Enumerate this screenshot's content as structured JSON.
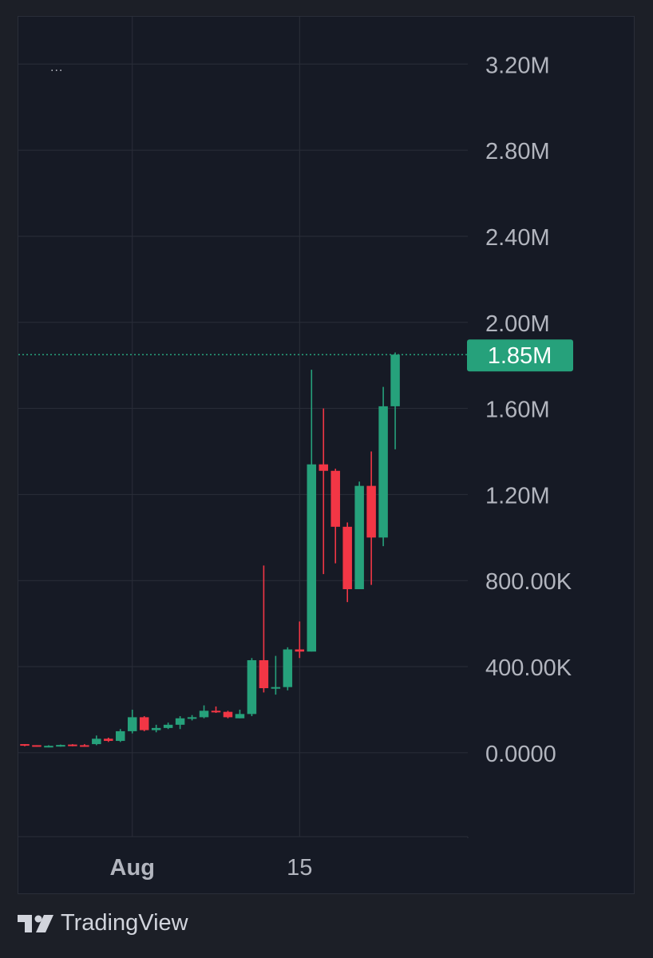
{
  "menu_label": "...",
  "brand": {
    "name": "TradingView"
  },
  "colors": {
    "up": "#26a17b",
    "down": "#f23645",
    "grid": "#2a2e39",
    "text": "#b2b5be",
    "background": "#161a25",
    "price_line": "#26a17b"
  },
  "chart_data": {
    "type": "candlestick",
    "y_ticks": [
      {
        "value": 3200000,
        "label": "3.20M"
      },
      {
        "value": 2800000,
        "label": "2.80M"
      },
      {
        "value": 2400000,
        "label": "2.40M"
      },
      {
        "value": 2000000,
        "label": "2.00M"
      },
      {
        "value": 1600000,
        "label": "1.60M"
      },
      {
        "value": 1200000,
        "label": "1.20M"
      },
      {
        "value": 800000,
        "label": "800.00K"
      },
      {
        "value": 400000,
        "label": "400.00K"
      },
      {
        "value": 0,
        "label": "0.0000"
      }
    ],
    "x_ticks": [
      {
        "index": 9,
        "label": "Aug"
      },
      {
        "index": 23,
        "label": "15"
      }
    ],
    "ylim": [
      -390000,
      3420000
    ],
    "current_price": {
      "value": 1850000,
      "label": "1.85M"
    },
    "candles": [
      {
        "o": 40000,
        "h": 40000,
        "l": 30000,
        "c": 35000
      },
      {
        "o": 35000,
        "h": 35000,
        "l": 28000,
        "c": 30000
      },
      {
        "o": 30000,
        "h": 35000,
        "l": 25000,
        "c": 32000
      },
      {
        "o": 32000,
        "h": 38000,
        "l": 28000,
        "c": 36000
      },
      {
        "o": 38000,
        "h": 40000,
        "l": 30000,
        "c": 35000
      },
      {
        "o": 35000,
        "h": 40000,
        "l": 28000,
        "c": 33000
      },
      {
        "o": 40000,
        "h": 80000,
        "l": 35000,
        "c": 65000
      },
      {
        "o": 65000,
        "h": 70000,
        "l": 50000,
        "c": 55000
      },
      {
        "o": 55000,
        "h": 110000,
        "l": 50000,
        "c": 100000
      },
      {
        "o": 100000,
        "h": 200000,
        "l": 90000,
        "c": 165000
      },
      {
        "o": 165000,
        "h": 170000,
        "l": 100000,
        "c": 105000
      },
      {
        "o": 105000,
        "h": 130000,
        "l": 95000,
        "c": 115000
      },
      {
        "o": 115000,
        "h": 140000,
        "l": 110000,
        "c": 130000
      },
      {
        "o": 130000,
        "h": 170000,
        "l": 110000,
        "c": 160000
      },
      {
        "o": 160000,
        "h": 175000,
        "l": 150000,
        "c": 165000
      },
      {
        "o": 165000,
        "h": 220000,
        "l": 160000,
        "c": 195000
      },
      {
        "o": 195000,
        "h": 215000,
        "l": 185000,
        "c": 190000
      },
      {
        "o": 190000,
        "h": 195000,
        "l": 160000,
        "c": 165000
      },
      {
        "o": 160000,
        "h": 200000,
        "l": 160000,
        "c": 180000
      },
      {
        "o": 180000,
        "h": 440000,
        "l": 170000,
        "c": 430000
      },
      {
        "o": 430000,
        "h": 870000,
        "l": 280000,
        "c": 300000
      },
      {
        "o": 300000,
        "h": 450000,
        "l": 270000,
        "c": 305000
      },
      {
        "o": 305000,
        "h": 490000,
        "l": 290000,
        "c": 480000
      },
      {
        "o": 480000,
        "h": 610000,
        "l": 440000,
        "c": 470000
      },
      {
        "o": 470000,
        "h": 1780000,
        "l": 470000,
        "c": 1340000
      },
      {
        "o": 1340000,
        "h": 1600000,
        "l": 830000,
        "c": 1310000
      },
      {
        "o": 1310000,
        "h": 1320000,
        "l": 880000,
        "c": 1050000
      },
      {
        "o": 1050000,
        "h": 1070000,
        "l": 700000,
        "c": 760000
      },
      {
        "o": 760000,
        "h": 1260000,
        "l": 760000,
        "c": 1240000
      },
      {
        "o": 1240000,
        "h": 1400000,
        "l": 780000,
        "c": 1000000
      },
      {
        "o": 1000000,
        "h": 1700000,
        "l": 960000,
        "c": 1610000
      },
      {
        "o": 1610000,
        "h": 1860000,
        "l": 1410000,
        "c": 1850000
      }
    ]
  }
}
